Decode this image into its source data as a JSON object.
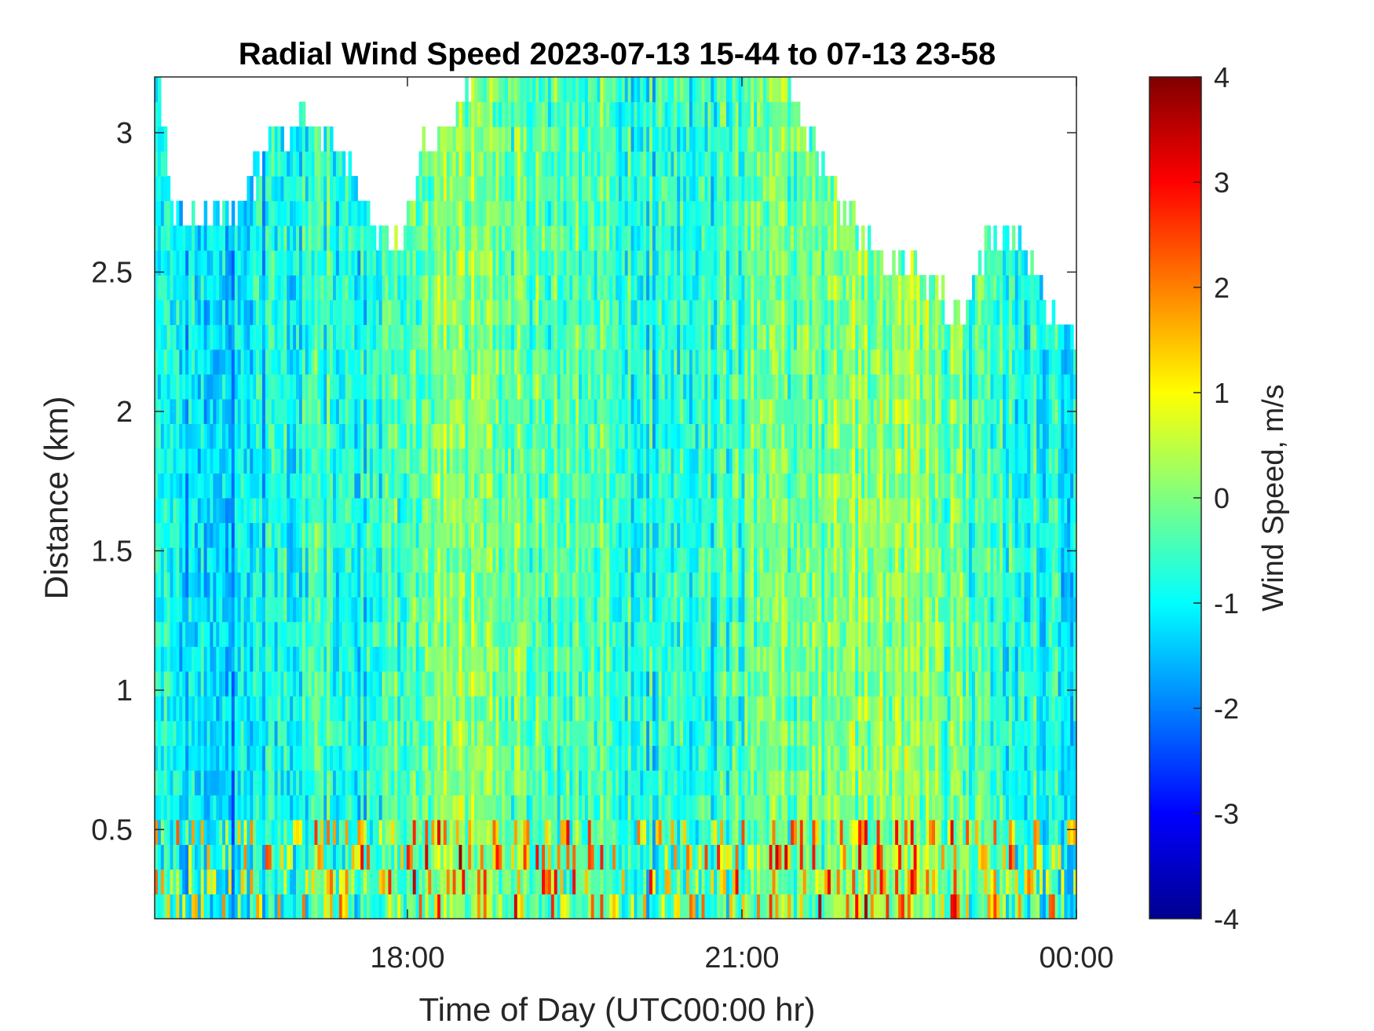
{
  "chart_data": {
    "type": "heatmap",
    "title": "Radial Wind Speed 2023-07-13 15-44 to 07-13 23-58",
    "xlabel": "Time of Day (UTC00:00 hr)",
    "ylabel": "Distance (km)",
    "x_range_hours": [
      15.7333,
      24.0
    ],
    "ylim": [
      0.18,
      3.2
    ],
    "x_ticks": [
      {
        "value": 18,
        "label": "18:00"
      },
      {
        "value": 21,
        "label": "21:00"
      },
      {
        "value": 24,
        "label": "00:00"
      }
    ],
    "y_ticks": [
      {
        "value": 0.5,
        "label": "0.5"
      },
      {
        "value": 1,
        "label": "1"
      },
      {
        "value": 1.5,
        "label": "1.5"
      },
      {
        "value": 2,
        "label": "2"
      },
      {
        "value": 2.5,
        "label": "2.5"
      },
      {
        "value": 3,
        "label": "3"
      }
    ],
    "colorbar": {
      "label": "Wind Speed, m/s",
      "range": [
        -4,
        4
      ],
      "ticks": [
        -4,
        -3,
        -2,
        -1,
        0,
        1,
        2,
        3,
        4
      ],
      "colormap": "jet"
    },
    "data_top_km": [
      {
        "t": 15.73,
        "top": 3.2
      },
      {
        "t": 15.9,
        "top": 2.65
      },
      {
        "t": 16.2,
        "top": 2.68
      },
      {
        "t": 16.5,
        "top": 2.7
      },
      {
        "t": 16.8,
        "top": 2.95
      },
      {
        "t": 17.1,
        "top": 3.0
      },
      {
        "t": 17.4,
        "top": 2.9
      },
      {
        "t": 17.7,
        "top": 2.62
      },
      {
        "t": 17.95,
        "top": 2.55
      },
      {
        "t": 18.1,
        "top": 2.9
      },
      {
        "t": 18.4,
        "top": 3.05
      },
      {
        "t": 18.7,
        "top": 3.2
      },
      {
        "t": 19.5,
        "top": 3.2
      },
      {
        "t": 20.5,
        "top": 3.2
      },
      {
        "t": 21.3,
        "top": 3.2
      },
      {
        "t": 21.6,
        "top": 2.95
      },
      {
        "t": 21.85,
        "top": 2.72
      },
      {
        "t": 22.2,
        "top": 2.5
      },
      {
        "t": 22.5,
        "top": 2.45
      },
      {
        "t": 22.8,
        "top": 2.35
      },
      {
        "t": 23.0,
        "top": 2.3
      },
      {
        "t": 23.2,
        "top": 2.6
      },
      {
        "t": 23.5,
        "top": 2.55
      },
      {
        "t": 23.75,
        "top": 2.3
      },
      {
        "t": 24.0,
        "top": 2.2
      }
    ],
    "column_mean_speed": [
      {
        "t": 15.73,
        "v": -1.0
      },
      {
        "t": 16.0,
        "v": -1.3
      },
      {
        "t": 16.4,
        "v": -1.5
      },
      {
        "t": 16.8,
        "v": -0.9
      },
      {
        "t": 17.2,
        "v": -0.6
      },
      {
        "t": 17.6,
        "v": -0.8
      },
      {
        "t": 18.0,
        "v": -0.2
      },
      {
        "t": 18.4,
        "v": 0.3
      },
      {
        "t": 18.8,
        "v": -0.1
      },
      {
        "t": 19.2,
        "v": -0.4
      },
      {
        "t": 19.6,
        "v": -0.3
      },
      {
        "t": 20.0,
        "v": -0.7
      },
      {
        "t": 20.4,
        "v": -0.9
      },
      {
        "t": 20.8,
        "v": -0.6
      },
      {
        "t": 21.2,
        "v": -0.3
      },
      {
        "t": 21.6,
        "v": -0.2
      },
      {
        "t": 22.0,
        "v": 0.1
      },
      {
        "t": 22.4,
        "v": 0.2
      },
      {
        "t": 22.8,
        "v": -0.1
      },
      {
        "t": 23.2,
        "v": -0.5
      },
      {
        "t": 23.6,
        "v": -0.7
      },
      {
        "t": 24.0,
        "v": -1.0
      }
    ],
    "grid": false
  }
}
